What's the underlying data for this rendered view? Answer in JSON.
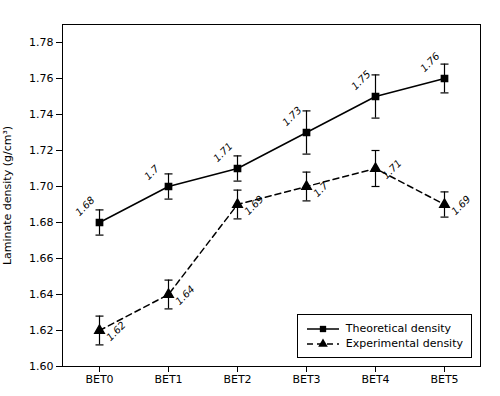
{
  "chart_data": {
    "type": "line",
    "categories": [
      "BET0",
      "BET1",
      "BET2",
      "BET3",
      "BET4",
      "BET5"
    ],
    "series": [
      {
        "name": "Theoretical density",
        "color": "black",
        "marker": "square",
        "line_style": "solid",
        "values": [
          1.68,
          1.7,
          1.71,
          1.73,
          1.75,
          1.76
        ],
        "errors": [
          0.007,
          0.007,
          0.007,
          0.012,
          0.012,
          0.008
        ]
      },
      {
        "name": "Experimental density",
        "color": "black",
        "marker": "triangle",
        "line_style": "dashed",
        "values": [
          1.62,
          1.64,
          1.69,
          1.7,
          1.71,
          1.69
        ],
        "errors": [
          0.008,
          0.008,
          0.008,
          0.008,
          0.01,
          0.007
        ]
      }
    ],
    "ylabel": "Laminate density (g/cm³)",
    "ylim": [
      1.6,
      1.79
    ],
    "yticks": [
      {
        "value": 1.6,
        "label": "1.60"
      },
      1.62,
      1.64,
      1.66,
      1.68,
      {
        "value": 1.7,
        "label": "1.70"
      },
      1.72,
      1.74,
      1.76,
      1.78
    ],
    "data_labels": true,
    "legend": "lower right",
    "grid": false
  }
}
